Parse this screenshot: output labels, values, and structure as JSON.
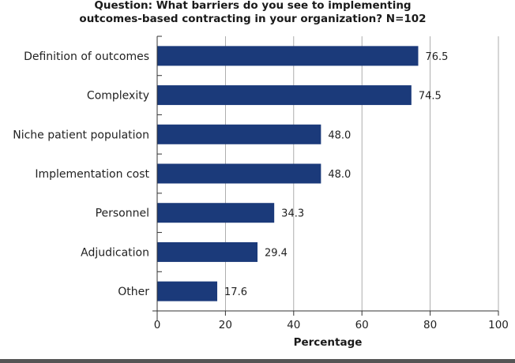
{
  "chart_data": {
    "type": "bar",
    "orientation": "horizontal",
    "title_lines": [
      "Question: What barriers do you see to implementing",
      "outcomes-based contracting in your organization? N=102"
    ],
    "categories": [
      "Definition of outcomes",
      "Complexity",
      "Niche patient population",
      "Implementation cost",
      "Personnel",
      "Adjudication",
      "Other"
    ],
    "values": [
      76.5,
      74.5,
      48.0,
      48.0,
      34.3,
      29.4,
      17.6
    ],
    "value_labels": [
      "76.5",
      "74.5",
      "48.0",
      "48.0",
      "34.3",
      "29.4",
      "17.6"
    ],
    "xlabel": "Percentage",
    "xlim": [
      0,
      100
    ],
    "xticks": [
      0,
      20,
      40,
      60,
      80,
      100
    ],
    "xtick_labels": [
      "0",
      "20",
      "40",
      "60",
      "80",
      "100"
    ],
    "grid": true,
    "bar_color": "#1b3a7a",
    "grid_color": "#999999",
    "footer_bar_color": "#555555"
  }
}
